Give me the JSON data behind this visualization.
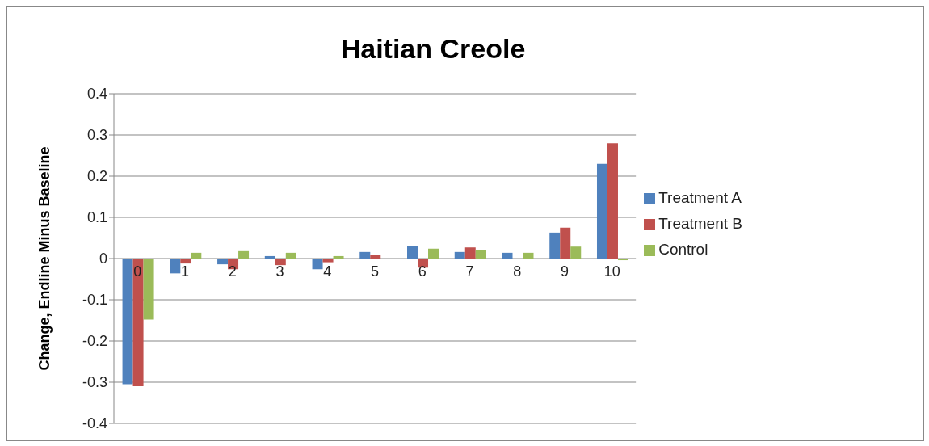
{
  "chart_data": {
    "type": "bar",
    "title": "Haitian Creole",
    "ylabel": "Change, Endline Minus Baseline",
    "categories": [
      "0",
      "1",
      "2",
      "3",
      "4",
      "5",
      "6",
      "7",
      "8",
      "9",
      "10"
    ],
    "series": [
      {
        "name": "Treatment A",
        "color": "#4f81bd",
        "values": [
          -0.305,
          -0.036,
          -0.014,
          0.006,
          -0.026,
          0.016,
          0.03,
          0.016,
          0.014,
          0.063,
          0.23
        ]
      },
      {
        "name": "Treatment B",
        "color": "#c0504d",
        "values": [
          -0.31,
          -0.012,
          -0.026,
          -0.016,
          -0.009,
          0.009,
          -0.022,
          0.027,
          0,
          0.075,
          0.28
        ]
      },
      {
        "name": "Control",
        "color": "#9bbb59",
        "values": [
          -0.148,
          0.014,
          0.018,
          0.014,
          0.006,
          0,
          0.024,
          0.021,
          0.014,
          0.029,
          -0.004
        ]
      }
    ],
    "ylim": [
      -0.4,
      0.4
    ],
    "yticks": [
      -0.4,
      -0.3,
      -0.2,
      -0.1,
      0,
      0.1,
      0.2,
      0.3,
      0.4
    ],
    "grid": "y",
    "legend": "right"
  }
}
